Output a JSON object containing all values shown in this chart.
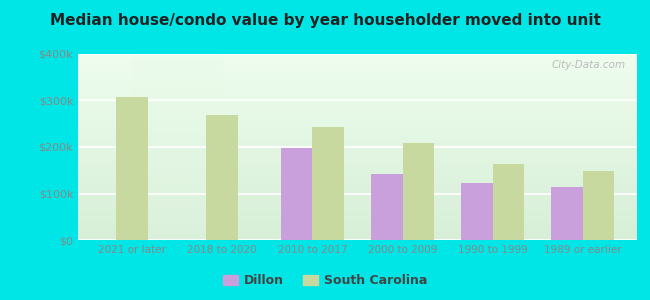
{
  "title": "Median house/condo value by year householder moved into unit",
  "categories": [
    "2021 or later",
    "2018 to 2020",
    "2010 to 2017",
    "2000 to 2009",
    "1990 to 1999",
    "1989 or earlier"
  ],
  "dillon_values": [
    null,
    null,
    197000,
    142000,
    122000,
    113000
  ],
  "sc_values": [
    308000,
    268000,
    242000,
    208000,
    163000,
    148000
  ],
  "dillon_color": "#c9a0dc",
  "sc_color": "#c8d9a0",
  "ylim": [
    0,
    400000
  ],
  "yticks": [
    0,
    100000,
    200000,
    300000,
    400000
  ],
  "ytick_labels": [
    "$0",
    "$100k",
    "$200k",
    "$300k",
    "$400k"
  ],
  "bg_top_color": "#f0fff0",
  "bg_bottom_color": "#d0f0d0",
  "outer_background": "#00e5e5",
  "legend_labels": [
    "Dillon",
    "South Carolina"
  ],
  "watermark": "City-Data.com",
  "title_color": "#222222",
  "tick_color": "#888888",
  "bar_width": 0.35
}
